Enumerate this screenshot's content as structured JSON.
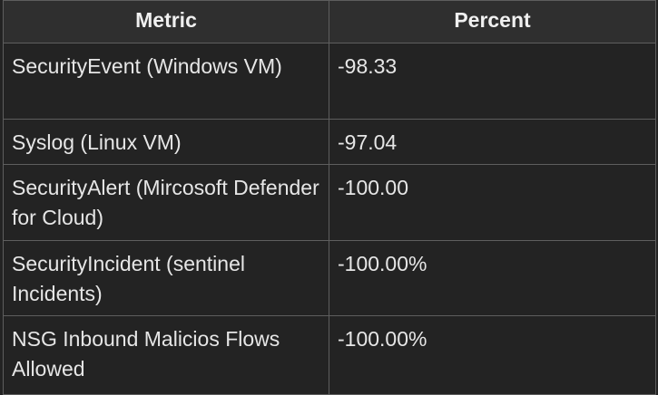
{
  "table": {
    "headers": [
      "Metric",
      "Percent"
    ],
    "rows": [
      {
        "metric": "SecurityEvent (Windows VM)",
        "percent": "-98.33"
      },
      {
        "metric": "Syslog (Linux VM)",
        "percent": "-97.04"
      },
      {
        "metric": "SecurityAlert (Mircosoft Defender for Cloud)",
        "percent": "-100.00"
      },
      {
        "metric": "SecurityIncident (sentinel Incidents)",
        "percent": "-100.00%"
      },
      {
        "metric": "NSG Inbound Malicios Flows Allowed",
        "percent": "-100.00%"
      }
    ]
  },
  "colors": {
    "background": "#232323",
    "header_background": "#2f2f2f",
    "border": "#5e5e5e",
    "text": "#e6e6e6"
  }
}
